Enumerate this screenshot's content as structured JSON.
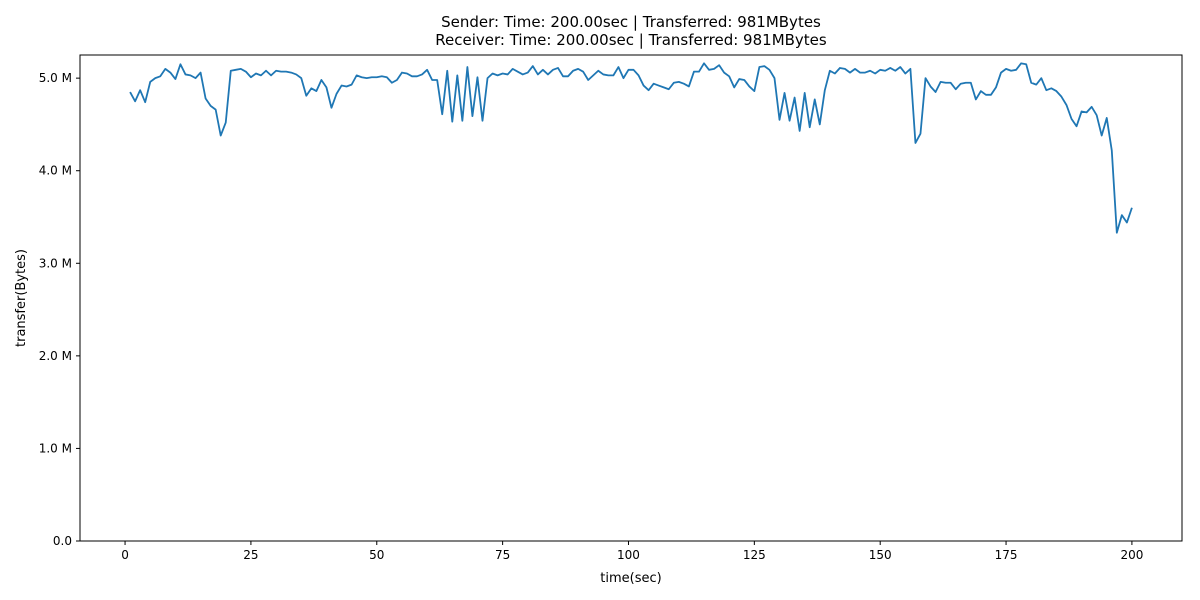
{
  "chart_data": {
    "type": "line",
    "title_lines": [
      "Sender: Time: 200.00sec | Transferred: 981MBytes",
      "Receiver: Time: 200.00sec | Transferred: 981MBytes"
    ],
    "xlabel": "time(sec)",
    "ylabel": "transfer(Bytes)",
    "xlim": [
      -8.95,
      209.95
    ],
    "ylim": [
      0,
      5.25
    ],
    "x_ticks": [
      0,
      25,
      50,
      75,
      100,
      125,
      150,
      175,
      200
    ],
    "x_tick_labels": [
      "0",
      "25",
      "50",
      "75",
      "100",
      "125",
      "150",
      "175",
      "200"
    ],
    "y_ticks": [
      0,
      1,
      2,
      3,
      4,
      5
    ],
    "y_tick_labels": [
      "0.0",
      "1.0 M",
      "2.0 M",
      "3.0 M",
      "4.0 M",
      "5.0 M"
    ],
    "grid": false,
    "colors": {
      "line": "#1f77b4",
      "axis": "#000000"
    },
    "series": [
      {
        "x": [
          1,
          2,
          3,
          4,
          5,
          6,
          7,
          8,
          9,
          10,
          11,
          12,
          13,
          14,
          15,
          16,
          17,
          18,
          19,
          20,
          21,
          22,
          23,
          24,
          25,
          26,
          27,
          28,
          29,
          30,
          31,
          32,
          33,
          34,
          35,
          36,
          37,
          38,
          39,
          40,
          41,
          42,
          43,
          44,
          45,
          46,
          47,
          48,
          49,
          50,
          51,
          52,
          53,
          54,
          55,
          56,
          57,
          58,
          59,
          60,
          61,
          62,
          63,
          64,
          65,
          66,
          67,
          68,
          69,
          70,
          71,
          72,
          73,
          74,
          75,
          76,
          77,
          78,
          79,
          80,
          81,
          82,
          83,
          84,
          85,
          86,
          87,
          88,
          89,
          90,
          91,
          92,
          93,
          94,
          95,
          96,
          97,
          98,
          99,
          100,
          101,
          102,
          103,
          104,
          105,
          106,
          107,
          108,
          109,
          110,
          111,
          112,
          113,
          114,
          115,
          116,
          117,
          118,
          119,
          120,
          121,
          122,
          123,
          124,
          125,
          126,
          127,
          128,
          129,
          130,
          131,
          132,
          133,
          134,
          135,
          136,
          137,
          138,
          139,
          140,
          141,
          142,
          143,
          144,
          145,
          146,
          147,
          148,
          149,
          150,
          151,
          152,
          153,
          154,
          155,
          156,
          157,
          158,
          159,
          160,
          161,
          162,
          163,
          164,
          165,
          166,
          167,
          168,
          169,
          170,
          171,
          172,
          173,
          174,
          175,
          176,
          177,
          178,
          179,
          180,
          181,
          182,
          183,
          184,
          185,
          186,
          187,
          188,
          189,
          190,
          191,
          192,
          193,
          194,
          195,
          196,
          197,
          198,
          199,
          200
        ],
        "values": [
          4.85,
          4.75,
          4.87,
          4.74,
          4.96,
          5.0,
          5.02,
          5.1,
          5.06,
          4.99,
          5.15,
          5.04,
          5.03,
          5.0,
          5.06,
          4.78,
          4.7,
          4.66,
          4.38,
          4.52,
          5.08,
          5.09,
          5.1,
          5.07,
          5.01,
          5.05,
          5.03,
          5.08,
          5.03,
          5.08,
          5.07,
          5.07,
          5.06,
          5.04,
          5.0,
          4.81,
          4.89,
          4.86,
          4.98,
          4.9,
          4.68,
          4.83,
          4.92,
          4.91,
          4.93,
          5.03,
          5.01,
          5.0,
          5.01,
          5.01,
          5.02,
          5.01,
          4.95,
          4.98,
          5.06,
          5.05,
          5.02,
          5.02,
          5.04,
          5.09,
          4.98,
          4.98,
          4.61,
          5.08,
          4.53,
          5.03,
          4.54,
          5.12,
          4.59,
          5.01,
          4.54,
          5.0,
          5.05,
          5.03,
          5.05,
          5.04,
          5.1,
          5.07,
          5.04,
          5.06,
          5.13,
          5.04,
          5.09,
          5.04,
          5.09,
          5.11,
          5.02,
          5.02,
          5.08,
          5.1,
          5.07,
          4.98,
          5.03,
          5.08,
          5.04,
          5.03,
          5.03,
          5.12,
          5.0,
          5.09,
          5.09,
          5.03,
          4.92,
          4.87,
          4.94,
          4.92,
          4.9,
          4.88,
          4.95,
          4.96,
          4.94,
          4.91,
          5.07,
          5.07,
          5.16,
          5.09,
          5.1,
          5.14,
          5.06,
          5.02,
          4.9,
          4.99,
          4.98,
          4.91,
          4.86,
          5.12,
          5.13,
          5.09,
          5.0,
          4.55,
          4.84,
          4.54,
          4.79,
          4.43,
          4.84,
          4.47,
          4.77,
          4.5,
          4.87,
          5.08,
          5.05,
          5.11,
          5.1,
          5.06,
          5.1,
          5.06,
          5.06,
          5.08,
          5.05,
          5.09,
          5.08,
          5.11,
          5.08,
          5.12,
          5.05,
          5.1,
          4.3,
          4.4,
          5.0,
          4.91,
          4.85,
          4.96,
          4.95,
          4.95,
          4.88,
          4.94,
          4.95,
          4.95,
          4.77,
          4.86,
          4.82,
          4.82,
          4.9,
          5.06,
          5.1,
          5.08,
          5.09,
          5.16,
          5.15,
          4.95,
          4.93,
          5.0,
          4.87,
          4.89,
          4.86,
          4.8,
          4.71,
          4.56,
          4.48,
          4.64,
          4.63,
          4.69,
          4.6,
          4.38,
          4.57,
          4.22,
          3.33,
          3.52,
          3.44,
          3.6
        ]
      }
    ]
  }
}
